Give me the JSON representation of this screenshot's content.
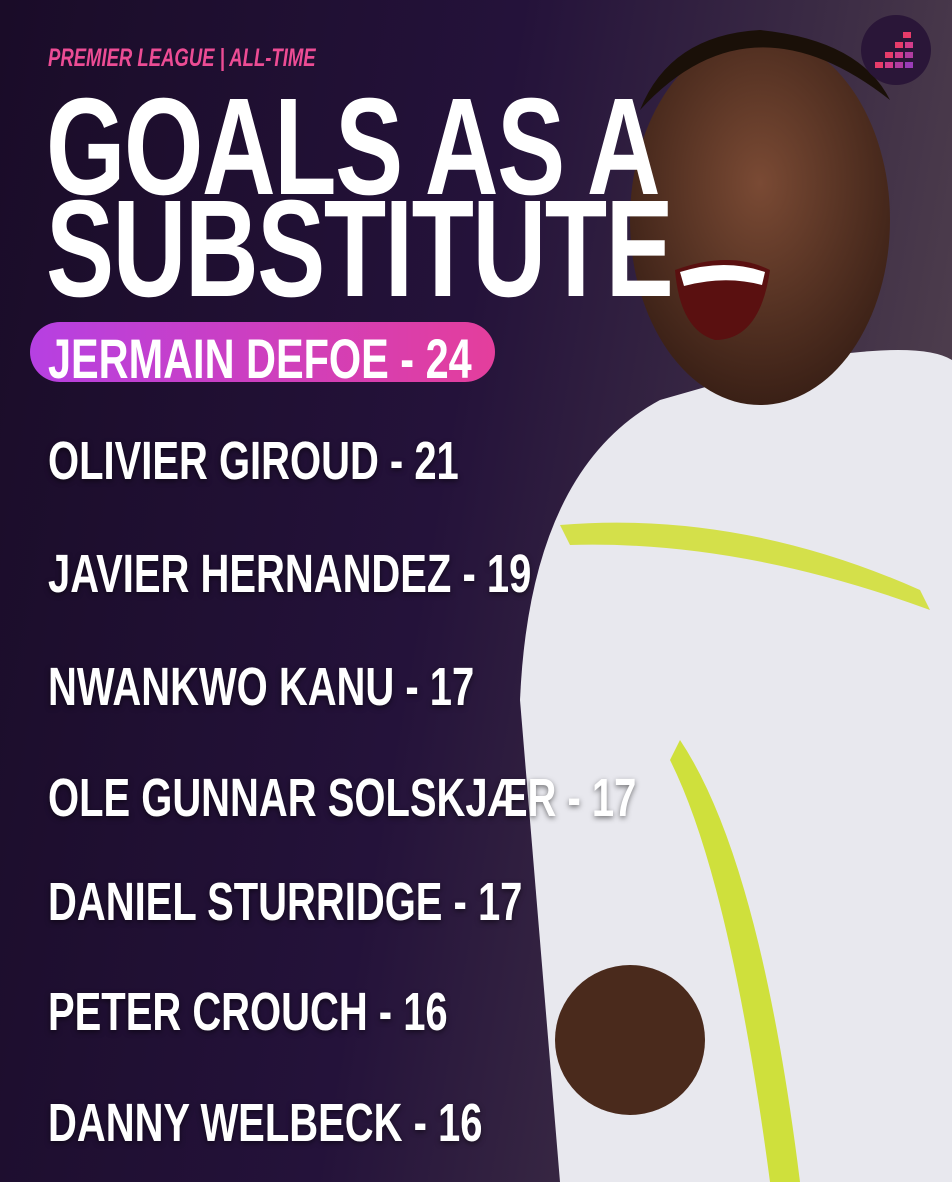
{
  "header": {
    "subtitle": "PREMIER LEAGUE | ALL-TIME",
    "title_line1": "GOALS AS A",
    "title_line2": "SUBSTITUTE"
  },
  "leader": {
    "label": "JERMAIN DEFOE - 24"
  },
  "list": [
    {
      "label": "OLIVIER GIROUD - 21"
    },
    {
      "label": "JAVIER HERNANDEZ - 19"
    },
    {
      "label": "NWANKWO KANU - 17"
    },
    {
      "label": "OLE GUNNAR SOLSKJÆR - 17"
    },
    {
      "label": "DANIEL STURRIDGE - 17"
    },
    {
      "label": "PETER CROUCH - 16"
    },
    {
      "label": "DANNY WELBECK - 16"
    }
  ],
  "colors": {
    "accent_pink": "#ec4c94",
    "pill_start": "#b640e2",
    "pill_end": "#e43e9c",
    "background": "#1e0f2c"
  },
  "icons": {
    "logo": "bar-steps-logo-icon"
  }
}
